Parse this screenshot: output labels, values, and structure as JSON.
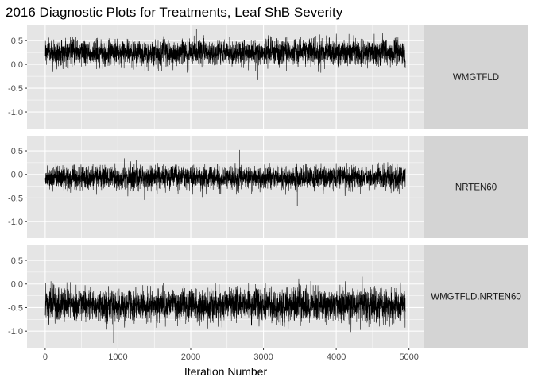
{
  "chart_data": {
    "type": "line",
    "title": "2016 Diagnostic Plots for Treatments, Leaf ShB Severity",
    "xlabel": "Iteration Number",
    "ylabel": "",
    "xlim": [
      -250,
      5200
    ],
    "ylim": [
      -1.35,
      0.82
    ],
    "x_ticks": [
      0,
      1000,
      2000,
      3000,
      4000,
      5000
    ],
    "y_ticks": [
      0.5,
      0.0,
      -0.5,
      -1.0
    ],
    "x_tick_labels": [
      "0",
      "1000",
      "2000",
      "3000",
      "4000",
      "5000"
    ],
    "y_tick_labels": [
      "0.5",
      "0.0",
      "-0.5",
      "-1.0"
    ],
    "n_iterations": 4950,
    "grid": true,
    "series": [
      {
        "name": "WMGTFLD",
        "mean": 0.25,
        "sd": 0.16,
        "min": -0.33,
        "max": 0.75
      },
      {
        "name": "NRTEN60",
        "mean": -0.07,
        "sd": 0.15,
        "min": -0.66,
        "max": 0.52
      },
      {
        "name": "WMGTFLD.NRTEN60",
        "mean": -0.45,
        "sd": 0.21,
        "min": -1.25,
        "max": 0.45
      }
    ],
    "colors": {
      "panel_bg": "#e5e5e5",
      "grid": "#ffffff",
      "strip_bg": "#d4d4d4",
      "line": "#000000"
    }
  }
}
